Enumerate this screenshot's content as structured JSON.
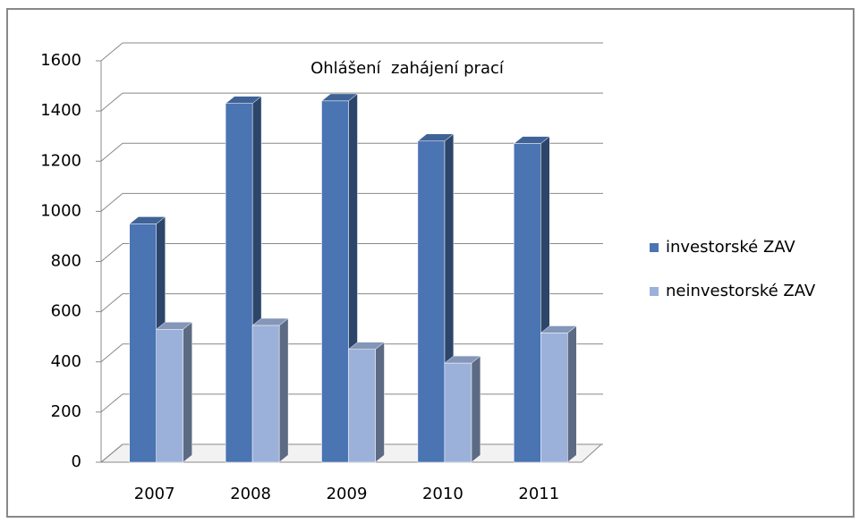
{
  "chart_data": {
    "type": "bar3d",
    "title": "Ohlášení  zahájení prací",
    "categories": [
      "2007",
      "2008",
      "2009",
      "2010",
      "2011"
    ],
    "series": [
      {
        "name": "investorské ZAV",
        "color": "#4a74b2",
        "values": [
          950,
          1430,
          1440,
          1280,
          1270
        ]
      },
      {
        "name": "neinvestorské ZAV",
        "color": "#9bb1da",
        "values": [
          530,
          545,
          450,
          395,
          515
        ]
      }
    ],
    "ylim": [
      0,
      1600
    ],
    "yticks": [
      0,
      200,
      400,
      600,
      800,
      1000,
      1200,
      1400,
      1600
    ],
    "grid": true,
    "legend": "right"
  }
}
